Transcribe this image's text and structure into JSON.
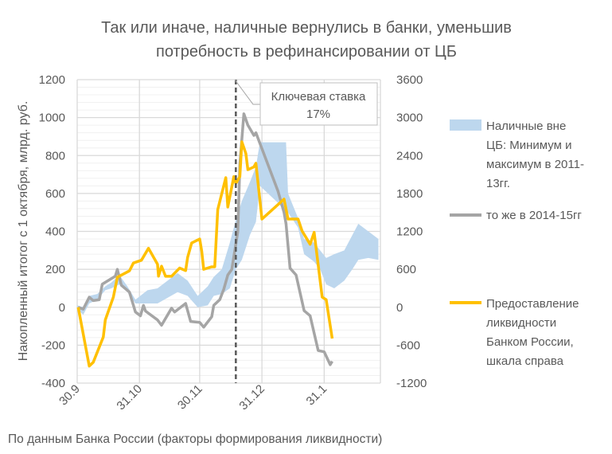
{
  "chart_data": {
    "type": "line",
    "title": [
      "Так или иначе, наличные вернулись в банки, уменьшив",
      "потребность в рефинансировании от ЦБ"
    ],
    "ylabel": "Накопленный итогог с 1 октября, млрд. руб.",
    "ylim": [
      -400,
      1200
    ],
    "y_ticks": [
      "-400",
      "-200",
      "0",
      "200",
      "400",
      "600",
      "800",
      "1000",
      "1200"
    ],
    "y2lim": [
      -1200,
      3600
    ],
    "y2_ticks": [
      "-1200",
      "-600",
      "0",
      "600",
      "1200",
      "1800",
      "2400",
      "3000",
      "3600"
    ],
    "x_unit": "days since 30.9",
    "xlim": [
      0,
      151
    ],
    "x_ticks": [
      {
        "label": "30.9",
        "day": 0
      },
      {
        "label": "31.10",
        "day": 31
      },
      {
        "label": "30.11",
        "day": 61
      },
      {
        "label": "31.12",
        "day": 92
      },
      {
        "label": "31.1",
        "day": 123
      }
    ],
    "grid": true,
    "legend_position": "right",
    "annotation": {
      "line1": "Ключевая ставка",
      "line2": "17%",
      "day": 79
    },
    "source": "По данным Банка России (факторы формирования ликвидности)",
    "colors": {
      "band": "#bdd7ee",
      "gray": "#a5a5a5",
      "yellow": "#ffc000",
      "grid": "#d9d9d9",
      "dash": "#595959"
    },
    "series": [
      {
        "name": "band",
        "legend": [
          "Наличные вне",
          "ЦБ: Минимум и",
          "максимум в 2011-",
          "13гг."
        ],
        "axis": "left",
        "day": [
          0,
          3,
          6,
          10,
          14,
          17,
          21,
          25,
          29,
          35,
          40,
          45,
          50,
          55,
          60,
          65,
          68,
          72,
          76,
          79,
          82,
          86,
          89,
          91,
          95,
          100,
          104,
          105,
          110,
          113,
          118,
          121,
          124,
          128,
          133,
          137,
          140,
          145,
          150
        ],
        "min": [
          -10,
          -40,
          20,
          40,
          90,
          100,
          120,
          80,
          20,
          20,
          20,
          50,
          80,
          60,
          0,
          10,
          60,
          70,
          100,
          200,
          250,
          380,
          450,
          640,
          600,
          550,
          500,
          500,
          420,
          280,
          240,
          200,
          120,
          100,
          140,
          200,
          250,
          260,
          250
        ],
        "max": [
          10,
          0,
          60,
          70,
          110,
          130,
          170,
          110,
          40,
          90,
          100,
          140,
          180,
          140,
          60,
          110,
          160,
          200,
          340,
          460,
          560,
          660,
          740,
          870,
          870,
          870,
          870,
          600,
          470,
          360,
          340,
          300,
          260,
          280,
          300,
          380,
          440,
          400,
          360
        ]
      },
      {
        "name": "gray",
        "legend": [
          "то же в 2014-15гг"
        ],
        "axis": "left",
        "points": [
          [
            0.5,
            0
          ],
          [
            3,
            -10
          ],
          [
            6,
            53
          ],
          [
            8,
            35
          ],
          [
            11,
            40
          ],
          [
            12.5,
            122
          ],
          [
            19,
            164
          ],
          [
            20,
            200
          ],
          [
            22,
            116
          ],
          [
            26,
            80
          ],
          [
            29,
            -25
          ],
          [
            31.5,
            -45
          ],
          [
            33,
            10
          ],
          [
            34,
            -20
          ],
          [
            40,
            -67
          ],
          [
            42,
            -95
          ],
          [
            47,
            -5
          ],
          [
            48.5,
            -25
          ],
          [
            54,
            20
          ],
          [
            56.5,
            -75
          ],
          [
            61,
            -80
          ],
          [
            63,
            -105
          ],
          [
            67,
            -50
          ],
          [
            68,
            10
          ],
          [
            71,
            40
          ],
          [
            73,
            95
          ],
          [
            75,
            170
          ],
          [
            77,
            200
          ],
          [
            80,
            400
          ],
          [
            81,
            752
          ],
          [
            83,
            1020
          ],
          [
            85,
            960
          ],
          [
            88,
            906
          ],
          [
            89,
            920
          ],
          [
            91,
            864
          ],
          [
            100,
            612
          ],
          [
            103,
            500
          ],
          [
            104,
            440
          ],
          [
            106,
            206
          ],
          [
            109,
            170
          ],
          [
            113,
            -18
          ],
          [
            116,
            -45
          ],
          [
            120,
            -228
          ],
          [
            123,
            -235
          ],
          [
            126,
            -303
          ],
          [
            127,
            -285
          ]
        ]
      },
      {
        "name": "yellow",
        "legend": [
          "Предоставление",
          "ликвидности",
          "Банком России,",
          "шкала справа"
        ],
        "axis": "right",
        "points": [
          [
            0.5,
            0
          ],
          [
            6,
            -930
          ],
          [
            8,
            -870
          ],
          [
            13,
            -470
          ],
          [
            14,
            -200
          ],
          [
            18,
            160
          ],
          [
            20,
            475
          ],
          [
            26,
            575
          ],
          [
            28,
            700
          ],
          [
            32,
            744
          ],
          [
            35.5,
            933
          ],
          [
            40,
            680
          ],
          [
            40.5,
            492
          ],
          [
            42,
            650
          ],
          [
            44,
            490
          ],
          [
            47,
            490
          ],
          [
            51,
            620
          ],
          [
            54,
            580
          ],
          [
            55,
            790
          ],
          [
            57,
            1017
          ],
          [
            61,
            1080
          ],
          [
            62,
            890
          ],
          [
            63,
            600
          ],
          [
            67,
            640
          ],
          [
            68.5,
            640
          ],
          [
            70,
            1546
          ],
          [
            74,
            2050
          ],
          [
            75,
            1586
          ],
          [
            78,
            2066
          ],
          [
            79,
            1960
          ],
          [
            81,
            2066
          ],
          [
            82,
            2617
          ],
          [
            84,
            2430
          ],
          [
            85,
            2176
          ],
          [
            88,
            2220
          ],
          [
            89,
            2277
          ],
          [
            92,
            1395
          ],
          [
            103,
            1710
          ],
          [
            105,
            1395
          ],
          [
            110,
            1395
          ],
          [
            112,
            1206
          ],
          [
            116,
            996
          ],
          [
            118,
            1185
          ],
          [
            122,
            160
          ],
          [
            124,
            120
          ],
          [
            127,
            -495
          ]
        ]
      }
    ]
  }
}
